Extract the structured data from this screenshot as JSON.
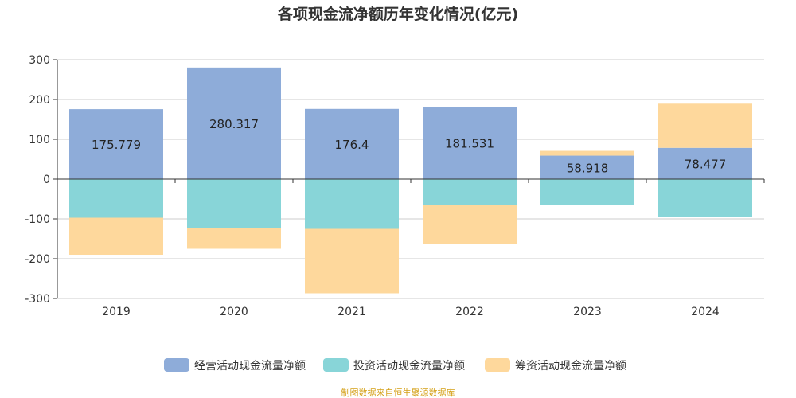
{
  "chart_data": {
    "type": "bar",
    "stacked": true,
    "title": "各项现金流净额历年变化情况(亿元)",
    "categories": [
      "2019",
      "2020",
      "2021",
      "2022",
      "2023",
      "2024"
    ],
    "series": [
      {
        "name": "经营活动现金流量净额",
        "color": "#8eacd9",
        "values": [
          175.779,
          280.317,
          176.4,
          181.531,
          58.918,
          78.477
        ],
        "labels": [
          "175.779",
          "280.317",
          "176.4",
          "181.531",
          "58.918",
          "78.477"
        ]
      },
      {
        "name": "投资活动现金流量净额",
        "color": "#88d5d8",
        "values": [
          -97,
          -122,
          -125,
          -66,
          -66,
          -95
        ]
      },
      {
        "name": "筹资活动现金流量净额",
        "color": "#fed89c",
        "values": [
          -93,
          -53,
          -162,
          -96,
          12,
          111
        ]
      }
    ],
    "ylim": [
      -300,
      300
    ],
    "yticks": [
      "300",
      "200",
      "100",
      "0",
      "-100",
      "-200",
      "-300"
    ],
    "grid": true,
    "legend_position": "bottom"
  },
  "source": "制图数据来自恒生聚源数据库"
}
